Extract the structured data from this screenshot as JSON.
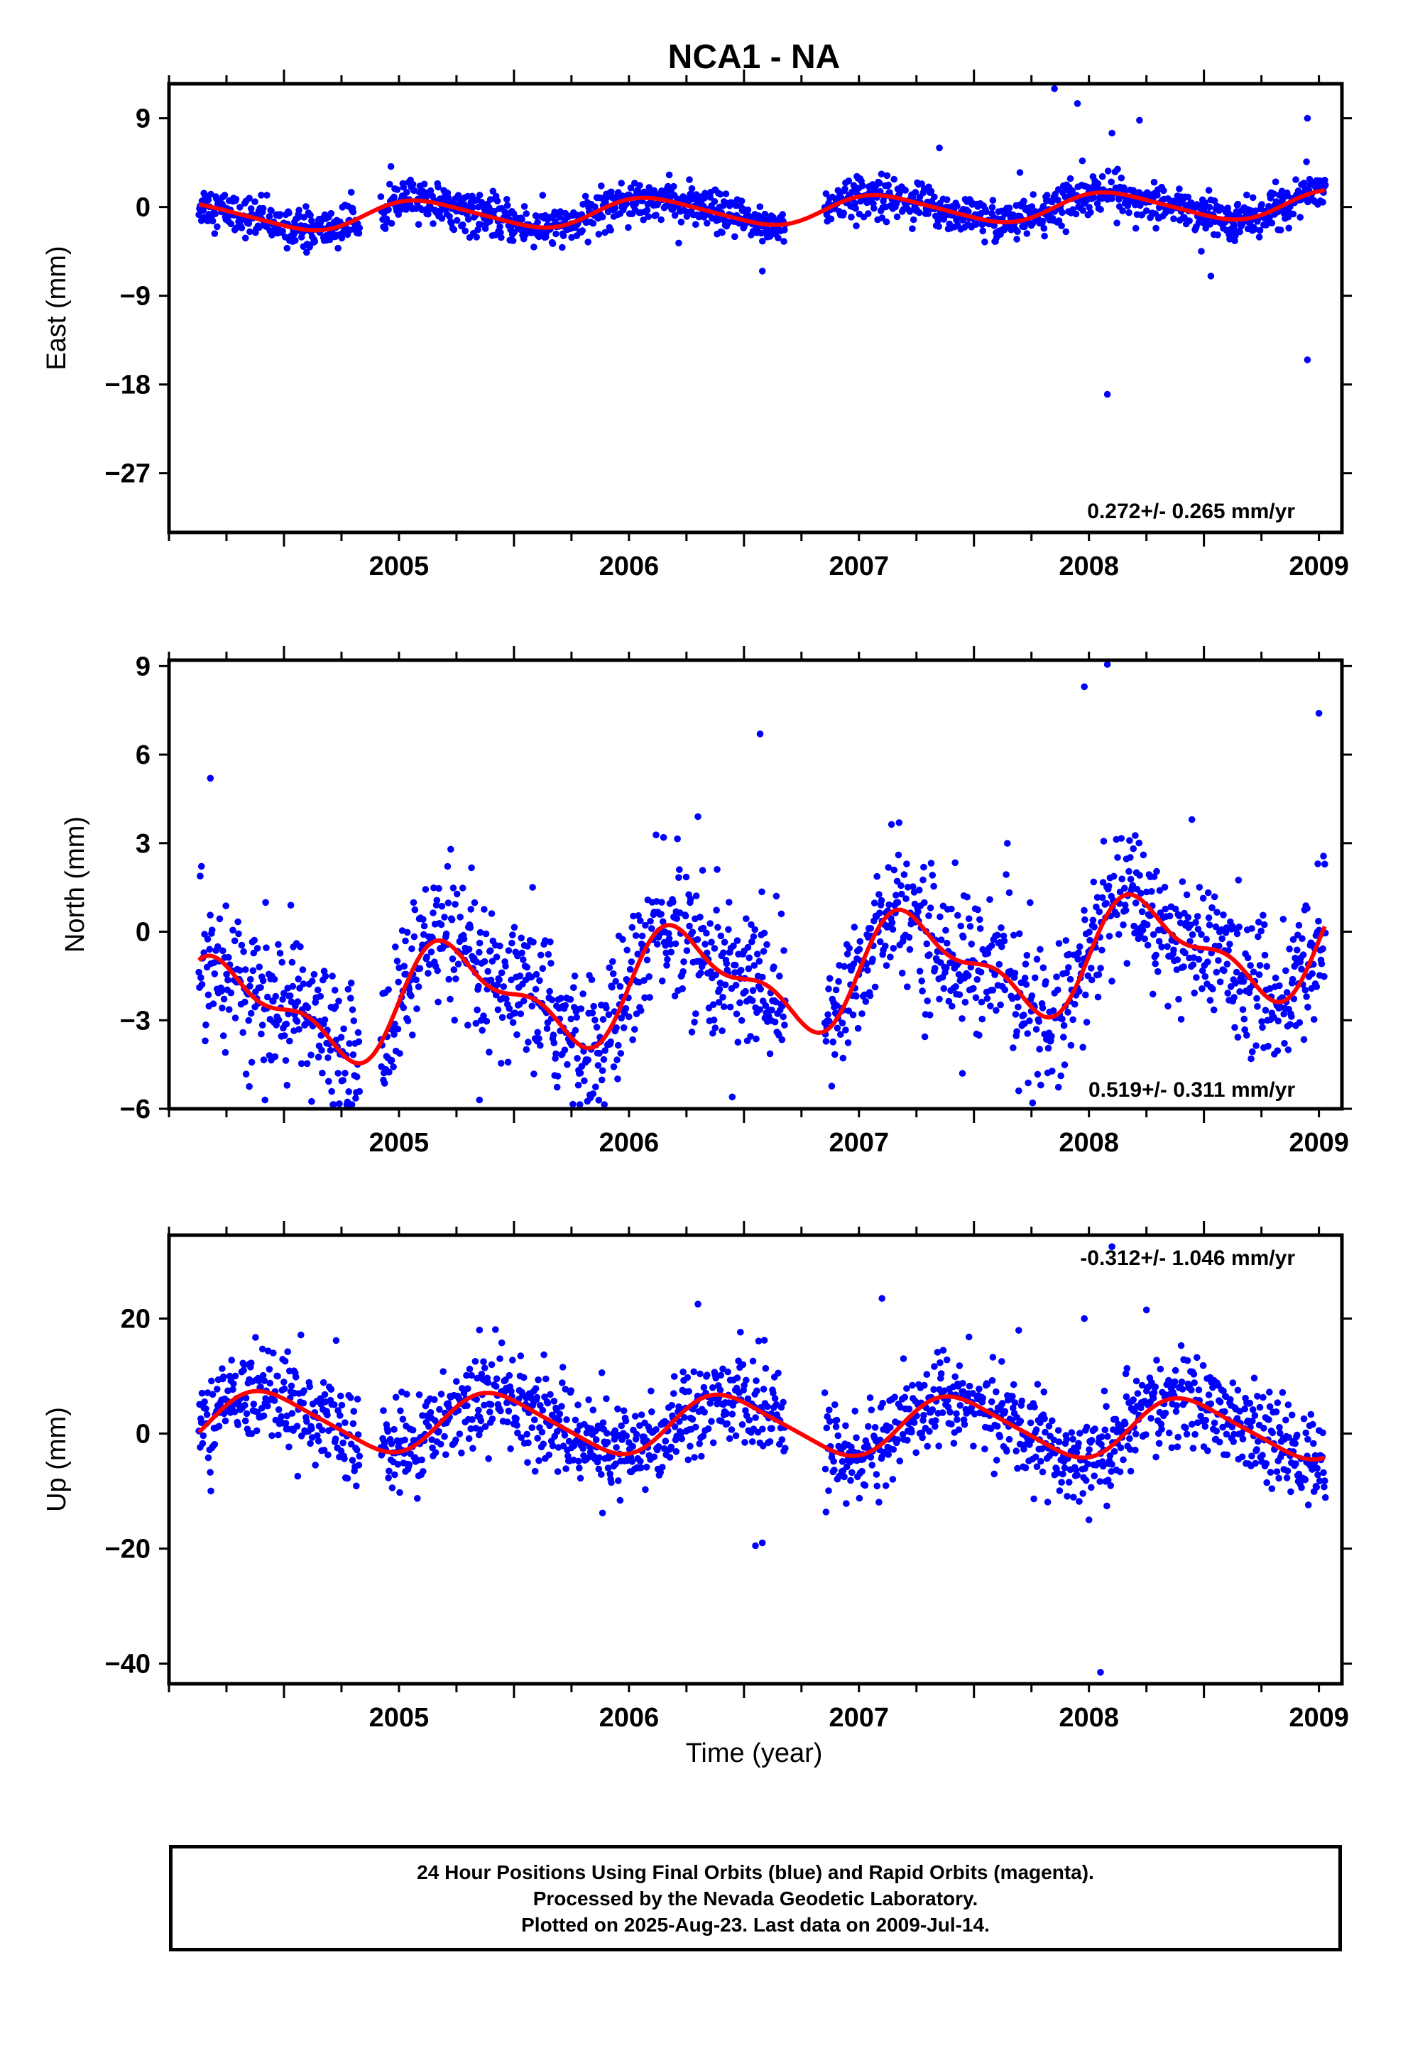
{
  "title": "NCA1 - NA",
  "xlabel": "Time (year)",
  "colors": {
    "final_orbits": "#0000ff",
    "model_fit": "#ff0000",
    "frame": "#000000"
  },
  "footer": {
    "line1": "24 Hour Positions Using Final Orbits (blue) and Rapid Orbits (magenta).",
    "line2": "Processed by the Nevada Geodetic Laboratory.",
    "line3": "Plotted on 2025-Aug-23. Last data on 2009-Jul-14."
  },
  "chart_data": [
    {
      "type": "scatter",
      "component": "east",
      "ylabel": "East (mm)",
      "rate_label": "0.272+/- 0.265 mm/yr",
      "xlim": [
        2004.5,
        2009.6
      ],
      "ylim": [
        -33,
        12.5
      ],
      "xticks": [
        2005,
        2006,
        2007,
        2008,
        2009
      ],
      "yticks": [
        9,
        0,
        -9,
        -18,
        -27
      ],
      "time_range": [
        2004.63,
        2009.53
      ],
      "series": [
        {
          "role": "daily_positions",
          "color": "#0000ff",
          "rate_mm_yr": 0.272,
          "annual_amp": 1.4,
          "annual_phase": 0.35,
          "semi_amp": 0.2,
          "offset": -0.4,
          "scatter": 1.0
        },
        {
          "role": "model_fit",
          "color": "#ff0000"
        }
      ],
      "outliers": [
        {
          "x": 2008.35,
          "y": 12.0
        },
        {
          "x": 2008.45,
          "y": 10.5
        },
        {
          "x": 2009.45,
          "y": 9.0
        },
        {
          "x": 2008.72,
          "y": 8.8
        },
        {
          "x": 2008.6,
          "y": 7.5
        },
        {
          "x": 2007.85,
          "y": 6.0
        },
        {
          "x": 2008.58,
          "y": -19.0
        },
        {
          "x": 2009.45,
          "y": -15.5
        },
        {
          "x": 2007.08,
          "y": -6.5
        },
        {
          "x": 2009.03,
          "y": -7.0
        },
        {
          "x": 2008.2,
          "y": 3.5
        },
        {
          "x": 2008.4,
          "y": -2.5
        }
      ]
    },
    {
      "type": "scatter",
      "component": "north",
      "ylabel": "North (mm)",
      "rate_label": "0.519+/- 0.311 mm/yr",
      "xlim": [
        2004.5,
        2009.6
      ],
      "ylim": [
        -6,
        9.2
      ],
      "xticks": [
        2005,
        2006,
        2007,
        2008,
        2009
      ],
      "yticks": [
        9,
        6,
        3,
        0,
        -3,
        -6
      ],
      "time_range": [
        2004.63,
        2009.53
      ],
      "series": [
        {
          "role": "daily_positions",
          "color": "#0000ff",
          "rate_mm_yr": 0.519,
          "annual_amp": 1.6,
          "annual_phase": 0.5,
          "semi_amp": 0.7,
          "offset": -1.6,
          "scatter": 1.2
        },
        {
          "role": "model_fit",
          "color": "#ff0000"
        }
      ],
      "outliers": [
        {
          "x": 2004.68,
          "y": 5.2
        },
        {
          "x": 2007.07,
          "y": 6.7
        },
        {
          "x": 2008.58,
          "y": 9.1
        },
        {
          "x": 2008.48,
          "y": 8.3
        },
        {
          "x": 2006.8,
          "y": 3.9
        },
        {
          "x": 2007.95,
          "y": -4.8
        },
        {
          "x": 2005.85,
          "y": -5.7
        },
        {
          "x": 2006.28,
          "y": -5.2
        },
        {
          "x": 2009.5,
          "y": 7.4
        }
      ]
    },
    {
      "type": "scatter",
      "component": "up",
      "ylabel": "Up (mm)",
      "rate_label": "-0.312+/- 1.046 mm/yr",
      "xlim": [
        2004.5,
        2009.6
      ],
      "ylim": [
        -43.5,
        34.5
      ],
      "xticks": [
        2005,
        2006,
        2007,
        2008,
        2009
      ],
      "yticks": [
        20,
        0,
        -20,
        -40
      ],
      "time_range": [
        2004.63,
        2009.53
      ],
      "series": [
        {
          "role": "daily_positions",
          "color": "#0000ff",
          "rate_mm_yr": -0.312,
          "annual_amp": 5.0,
          "annual_phase": 0.68,
          "semi_amp": 0.8,
          "offset": 1.5,
          "scatter": 4.0
        },
        {
          "role": "model_fit",
          "color": "#ff0000"
        }
      ],
      "outliers": [
        {
          "x": 2008.6,
          "y": 32.5
        },
        {
          "x": 2007.6,
          "y": 23.5
        },
        {
          "x": 2006.8,
          "y": 22.5
        },
        {
          "x": 2008.75,
          "y": 21.5
        },
        {
          "x": 2008.48,
          "y": 20.0
        },
        {
          "x": 2007.08,
          "y": -19.0
        },
        {
          "x": 2007.05,
          "y": -19.5
        },
        {
          "x": 2008.55,
          "y": -41.5
        },
        {
          "x": 2005.85,
          "y": 18.0
        },
        {
          "x": 2008.5,
          "y": -15.0
        }
      ]
    }
  ]
}
